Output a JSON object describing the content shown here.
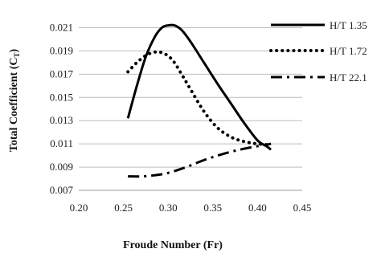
{
  "chart_data": {
    "type": "line",
    "title": "",
    "xlabel": "Froude Number (Fr)",
    "ylabel_main": "Total Coefficient (C",
    "ylabel_sub": "T",
    "ylabel_close": ")",
    "xlim": [
      0.2,
      0.45
    ],
    "ylim": [
      0.007,
      0.022
    ],
    "x_ticks": [
      "0.20",
      "0.25",
      "0.30",
      "0.35",
      "0.40",
      "0.45"
    ],
    "y_ticks": [
      "0.007",
      "0.009",
      "0.011",
      "0.013",
      "0.015",
      "0.017",
      "0.019",
      "0.021"
    ],
    "grid": "horizontal",
    "legend_position": "right",
    "series": [
      {
        "name": "H/T 1.35",
        "style": "solid",
        "color": "#000000",
        "x": [
          0.255,
          0.265,
          0.275,
          0.285,
          0.293,
          0.3,
          0.307,
          0.315,
          0.325,
          0.34,
          0.355,
          0.37,
          0.385,
          0.4,
          0.41,
          0.415
        ],
        "y": [
          0.0132,
          0.016,
          0.0185,
          0.0202,
          0.021,
          0.0212,
          0.0212,
          0.0208,
          0.0198,
          0.018,
          0.0162,
          0.0145,
          0.0128,
          0.0113,
          0.0108,
          0.0105
        ]
      },
      {
        "name": "H/T 1.72",
        "style": "dotted",
        "color": "#000000",
        "x": [
          0.255,
          0.265,
          0.275,
          0.285,
          0.295,
          0.305,
          0.315,
          0.325,
          0.34,
          0.355,
          0.37,
          0.385,
          0.4,
          0.415
        ],
        "y": [
          0.0172,
          0.018,
          0.0186,
          0.0189,
          0.0188,
          0.0182,
          0.017,
          0.0157,
          0.0138,
          0.0124,
          0.0116,
          0.0112,
          0.011,
          0.0109
        ]
      },
      {
        "name": "H/T 22.1",
        "style": "dashdot",
        "color": "#000000",
        "x": [
          0.255,
          0.27,
          0.285,
          0.3,
          0.32,
          0.34,
          0.36,
          0.38,
          0.4,
          0.415
        ],
        "y": [
          0.0082,
          0.0082,
          0.0083,
          0.0085,
          0.009,
          0.0096,
          0.0101,
          0.0105,
          0.0108,
          0.011
        ]
      }
    ]
  }
}
